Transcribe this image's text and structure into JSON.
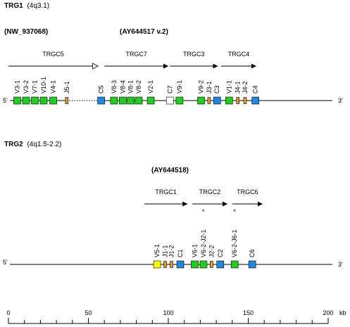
{
  "colors": {
    "V_gene": "#22cc22",
    "V_gene_yellow": "#ffff00",
    "C_gene": "#2288dd",
    "C7_gene": "#ffffff",
    "J_gene": "#dd9933",
    "line": "#000000"
  },
  "locus1": {
    "name": "TRG1",
    "location": "(4q3.1)",
    "contig_left": "(NW_937068)",
    "contig_right": "(AY644517 v.2)",
    "line_left_label": "5'",
    "line_right_label": "3'",
    "clusters": [
      {
        "label": "TRGC5",
        "start": 0,
        "end": 56,
        "arrow": "open"
      },
      {
        "label": "TRGC7",
        "start": 60,
        "end": 100,
        "arrow": "filled"
      },
      {
        "label": "TRGC3",
        "start": 101,
        "end": 131,
        "arrow": "filled"
      },
      {
        "label": "TRGC4",
        "start": 133,
        "end": 155,
        "arrow": "filled"
      }
    ],
    "genes": [
      {
        "label": "V3-1",
        "type": "V",
        "pos": 5.5
      },
      {
        "label": "V3-2",
        "type": "V",
        "pos": 11
      },
      {
        "label": "V7-1",
        "type": "V",
        "pos": 16.5
      },
      {
        "label": "V10-1",
        "type": "V",
        "pos": 22
      },
      {
        "label": "V4-1",
        "type": "V",
        "pos": 28
      },
      {
        "label": "J5-1",
        "type": "J",
        "pos": 36.5
      },
      {
        "label": "C5",
        "type": "C",
        "pos": 58
      },
      {
        "label": "V8-3",
        "type": "V",
        "pos": 66
      },
      {
        "label": "V8-4",
        "type": "V",
        "pos": 71.5
      },
      {
        "label": "V8-1",
        "type": "V",
        "pos": 76.5
      },
      {
        "label": "V8-2",
        "type": "V",
        "pos": 81.5
      },
      {
        "label": "V2-1",
        "type": "V",
        "pos": 89
      },
      {
        "label": "C7",
        "type": "C7",
        "pos": 101
      },
      {
        "label": "V9-1",
        "type": "V",
        "pos": 107
      },
      {
        "label": "V9-2",
        "type": "V",
        "pos": 120.5
      },
      {
        "label": "J3-1",
        "type": "J",
        "pos": 125.5
      },
      {
        "label": "C3",
        "type": "C",
        "pos": 130.5
      },
      {
        "label": "V1-1",
        "type": "V",
        "pos": 138
      },
      {
        "label": "J4-1",
        "type": "J",
        "pos": 143.5
      },
      {
        "label": "J4-2",
        "type": "J",
        "pos": 148
      },
      {
        "label": "C4",
        "type": "C",
        "pos": 154.5
      }
    ]
  },
  "locus2": {
    "name": "TRG2",
    "location": "(4q1.5-2.2)",
    "contig": "(AY644518)",
    "line_left_label": "5'",
    "line_right_label": "3'",
    "clusters": [
      {
        "label": "TRGC1",
        "start": 85,
        "end": 112,
        "arrow": "filled"
      },
      {
        "label": "TRGC2",
        "start": 115,
        "end": 137,
        "arrow": "filled"
      },
      {
        "label": "TRGC6",
        "start": 140,
        "end": 159,
        "arrow": "filled"
      }
    ],
    "genes": [
      {
        "label": "V5-1",
        "type": "Vy",
        "pos": 93,
        "mark": ""
      },
      {
        "label": "J1-1",
        "type": "J",
        "pos": 98,
        "mark": ""
      },
      {
        "label": "J1-2",
        "type": "J",
        "pos": 102,
        "mark": ""
      },
      {
        "label": "C1",
        "type": "C",
        "pos": 107.5,
        "mark": ""
      },
      {
        "label": "V6-1",
        "type": "V",
        "pos": 116.5,
        "mark": ""
      },
      {
        "label": "V6-2-J2-1",
        "type": "V",
        "pos": 122,
        "mark": "*"
      },
      {
        "label": "J2-2",
        "type": "J",
        "pos": 127,
        "mark": ""
      },
      {
        "label": "C2",
        "type": "C",
        "pos": 132.5,
        "mark": ""
      },
      {
        "label": "V6-2-J6-1",
        "type": "V",
        "pos": 141.5,
        "mark": "*"
      },
      {
        "label": "C6",
        "type": "C",
        "pos": 152.5,
        "mark": ""
      }
    ]
  },
  "scale": {
    "min": 0,
    "max": 200,
    "unit": "kb",
    "major_ticks": [
      {
        "value": 0,
        "label": "0"
      },
      {
        "value": 50,
        "label": "50"
      },
      {
        "value": 100,
        "label": "100"
      },
      {
        "value": 150,
        "label": "150"
      },
      {
        "value": 200,
        "label": "200"
      }
    ],
    "minor_step": 10
  }
}
